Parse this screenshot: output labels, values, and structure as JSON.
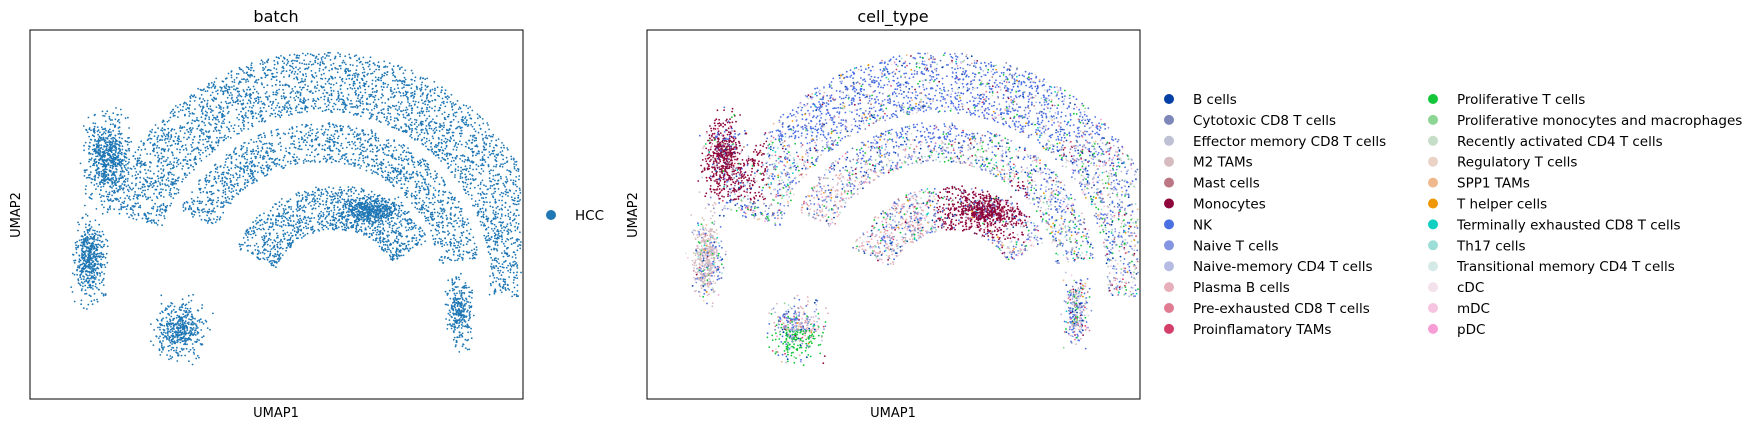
{
  "chart_data": [
    {
      "type": "scatter",
      "title": "batch",
      "xlabel": "UMAP1",
      "ylabel": "UMAP2",
      "grid": false,
      "legend_position": "right",
      "series": [
        {
          "name": "HCC",
          "color": "#1f77b4"
        }
      ]
    },
    {
      "type": "scatter",
      "title": "cell_type",
      "xlabel": "UMAP1",
      "ylabel": "UMAP2",
      "grid": false,
      "legend_position": "right",
      "legend_columns": 2,
      "series": [
        {
          "name": "B cells",
          "color": "#023fa5"
        },
        {
          "name": "Cytotoxic CD8 T cells",
          "color": "#7d87b9"
        },
        {
          "name": "Effector memory CD8 T cells",
          "color": "#bec1d4"
        },
        {
          "name": "M2 TAMs",
          "color": "#d6bcc0"
        },
        {
          "name": "Mast cells",
          "color": "#bb7784"
        },
        {
          "name": "Monocytes",
          "color": "#8e063b"
        },
        {
          "name": "NK",
          "color": "#4a6fe3"
        },
        {
          "name": "Naive T cells",
          "color": "#8595e1"
        },
        {
          "name": "Naive-memory CD4 T cells",
          "color": "#b5bbe3"
        },
        {
          "name": "Plasma B cells",
          "color": "#e6afb9"
        },
        {
          "name": "Pre-exhausted CD8 T cells",
          "color": "#e07b91"
        },
        {
          "name": "Proinflamatory TAMs",
          "color": "#d33f6a"
        },
        {
          "name": "Proliferative T cells",
          "color": "#11c638"
        },
        {
          "name": "Proliferative monocytes and macrophages",
          "color": "#8dd593"
        },
        {
          "name": "Recently activated CD4 T cells",
          "color": "#c6dec7"
        },
        {
          "name": "Regulatory T cells",
          "color": "#ead3c6"
        },
        {
          "name": "SPP1 TAMs",
          "color": "#f0b98d"
        },
        {
          "name": "T helper cells",
          "color": "#ef9708"
        },
        {
          "name": "Terminally exhausted CD8 T cells",
          "color": "#0fcfc0"
        },
        {
          "name": "Th17 cells",
          "color": "#9cded6"
        },
        {
          "name": "Transitional memory CD4 T cells",
          "color": "#d5eae7"
        },
        {
          "name": "cDC",
          "color": "#f3e1eb"
        },
        {
          "name": "mDC",
          "color": "#f6c4e1"
        },
        {
          "name": "pDC",
          "color": "#f79cd4"
        }
      ]
    }
  ]
}
